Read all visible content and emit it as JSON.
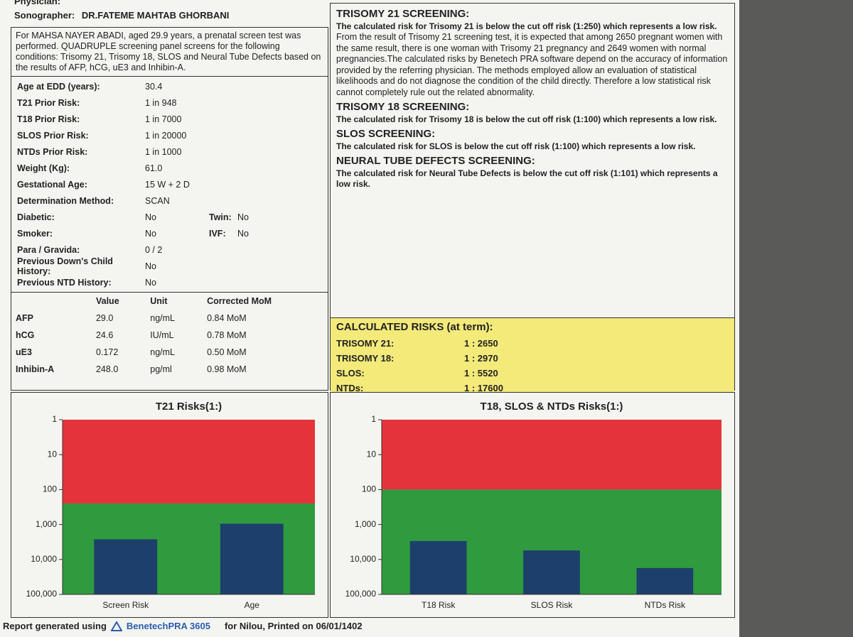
{
  "header": {
    "physician_label": "Physician:",
    "sonographer_label": "Sonographer:",
    "sonographer": "DR.FATEME MAHTAB GHORBANI"
  },
  "intro": "For MAHSA NAYER ABADI, aged 29.9 years, a prenatal screen test was performed. QUADRUPLE screening panel screens for the following conditions: Trisomy 21, Trisomy 18, SLOS and Neural Tube Defects based on the results of AFP, hCG, uE3 and Inhibin-A.",
  "patient": [
    {
      "label": "Age at EDD (years):",
      "value": "30.4"
    },
    {
      "label": "T21 Prior Risk:",
      "value": "1 in 948"
    },
    {
      "label": "T18 Prior Risk:",
      "value": "1 in 7000"
    },
    {
      "label": "SLOS Prior Risk:",
      "value": "1 in 20000"
    },
    {
      "label": "NTDs Prior Risk:",
      "value": "1 in 1000"
    },
    {
      "label": "Weight (Kg):",
      "value": "61.0"
    },
    {
      "label": "Gestational Age:",
      "value": "15 W + 2 D"
    },
    {
      "label": "Determination Method:",
      "value": "SCAN"
    },
    {
      "label": "Diabetic:",
      "value": "No",
      "label2": "Twin:",
      "value2": "No"
    },
    {
      "label": "Smoker:",
      "value": "No",
      "label2": "IVF:",
      "value2": "No"
    },
    {
      "label": "Para / Gravida:",
      "value": "0 / 2"
    },
    {
      "label": "Previous Down's Child History:",
      "value": "No"
    },
    {
      "label": "Previous NTD History:",
      "value": "No"
    }
  ],
  "markers": {
    "columns": [
      "Value",
      "Unit",
      "Corrected MoM"
    ],
    "rows": [
      [
        "AFP",
        "29.0",
        "ng/mL",
        "0.84 MoM"
      ],
      [
        "hCG",
        "24.6",
        "IU/mL",
        "0.78 MoM"
      ],
      [
        "uE3",
        "0.172",
        "ng/mL",
        "0.50 MoM"
      ],
      [
        "Inhibin-A",
        "248.0",
        "pg/ml",
        "0.98 MoM"
      ]
    ]
  },
  "sections": [
    {
      "title": "TRISOMY 21 SCREENING:",
      "summary": "The calculated risk for Trisomy 21 is below the cut off risk (1:250) which represents a low risk.",
      "body": "From the result of Trisomy 21 screening test, it is expected that among 2650 pregnant women with the same result, there is one woman with Trisomy 21 pregnancy and 2649 women with normal pregnancies.The calculated risks by Benetech PRA software depend on the accuracy of information provided by the referring physician. The methods employed allow an evaluation of statistical likelihoods and do not diagnose the condition of the child directly. Therefore a low statistical risk cannot completely rule out the related abnormality."
    },
    {
      "title": "TRISOMY 18 SCREENING:",
      "summary": "The calculated risk for Trisomy 18 is below the cut off risk (1:100) which represents a low risk."
    },
    {
      "title": "SLOS SCREENING:",
      "summary": "The calculated risk for SLOS is below the cut off risk (1:100) which represents a low risk."
    },
    {
      "title": "NEURAL TUBE DEFECTS SCREENING:",
      "summary": "The calculated risk for Neural Tube Defects is below the cut off risk (1:101) which represents a low risk."
    }
  ],
  "calculated": {
    "title": "CALCULATED RISKS (at term):",
    "rows": [
      [
        "TRISOMY 21:",
        "1 : 2650"
      ],
      [
        "TRISOMY 18:",
        "1 : 2970"
      ],
      [
        "SLOS:",
        "1 : 5520"
      ],
      [
        "NTDs:",
        "1 : 17600"
      ]
    ]
  },
  "chart_data": [
    {
      "type": "bar",
      "title": "T21 Risks(1:)",
      "categories": [
        "Screen Risk",
        "Age"
      ],
      "values": [
        2650,
        948
      ],
      "log_scale": true,
      "ylim": [
        1,
        100000
      ],
      "yticks": [
        1,
        10,
        100,
        {
          "value": 1000,
          "label": "1,000"
        },
        {
          "value": 10000,
          "label": "10,000"
        },
        {
          "value": 100000,
          "label": "100,000"
        }
      ],
      "cutoff": 250,
      "color": "#1d3f6b",
      "high_risk_color": "#e5333b",
      "low_risk_color": "#2f9a3e"
    },
    {
      "type": "bar",
      "title": "T18, SLOS & NTDs Risks(1:)",
      "categories": [
        "T18 Risk",
        "SLOS Risk",
        "NTDs Risk"
      ],
      "values": [
        2970,
        5520,
        17600
      ],
      "log_scale": true,
      "ylim": [
        1,
        100000
      ],
      "yticks": [
        1,
        10,
        100,
        {
          "value": 1000,
          "label": "1,000"
        },
        {
          "value": 10000,
          "label": "10,000"
        },
        {
          "value": 100000,
          "label": "100,000"
        }
      ],
      "cutoff": 100,
      "color": "#1d3f6b",
      "high_risk_color": "#e5333b",
      "low_risk_color": "#2f9a3e"
    }
  ],
  "footer": {
    "prefix": "Report generated using",
    "brand": "BenetechPRA 3605",
    "suffix": "for Nilou, Printed on 06/01/1402"
  }
}
